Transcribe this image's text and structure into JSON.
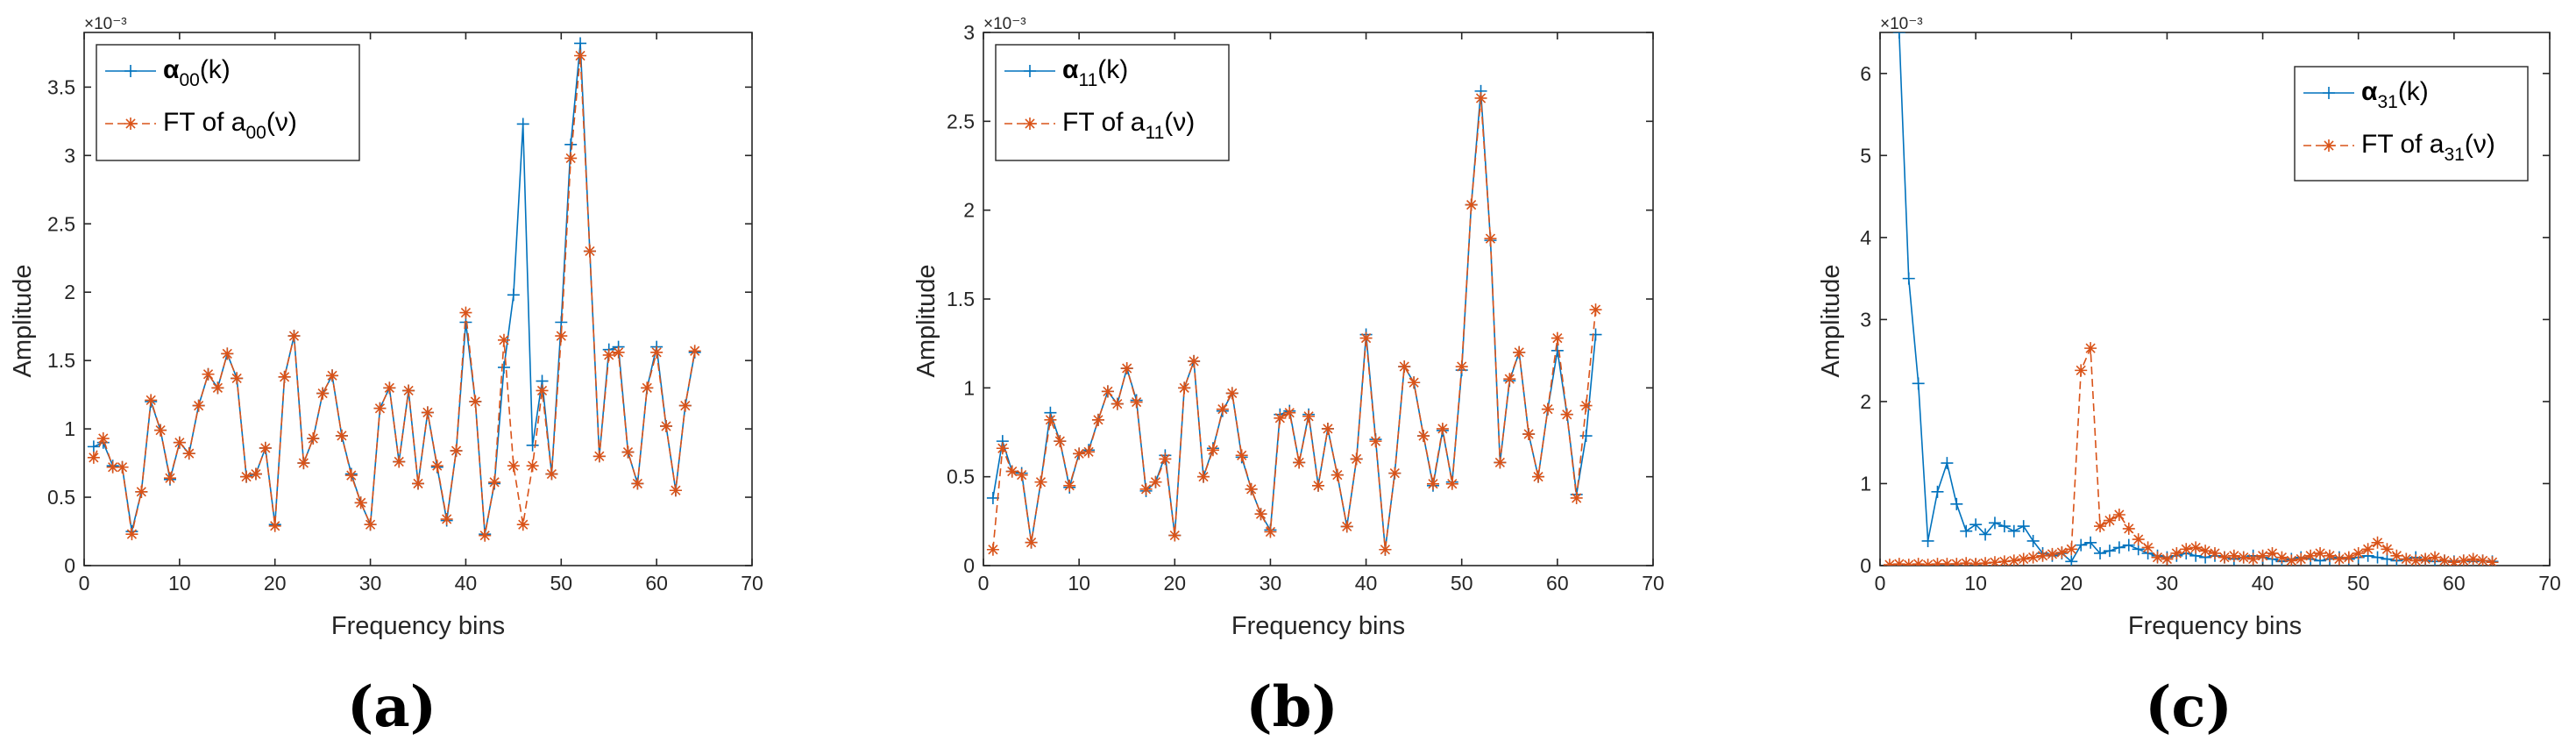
{
  "colors": {
    "blue": "#0072BD",
    "orange": "#D95319",
    "axis": "#262626"
  },
  "chart_data": [
    {
      "type": "line",
      "caption": "(a)",
      "xlabel": "Frequency bins",
      "ylabel": "Amplitude",
      "multiplier": "×10⁻³",
      "xlim": [
        0,
        70
      ],
      "ylim": [
        0,
        3.9
      ],
      "xticks": [
        0,
        10,
        20,
        30,
        40,
        50,
        60,
        70
      ],
      "xtick_labels": [
        "0",
        "10",
        "20",
        "30",
        "40",
        "50",
        "60",
        "70"
      ],
      "yticks": [
        0,
        0.5,
        1,
        1.5,
        2,
        2.5,
        3,
        3.5
      ],
      "ytick_labels": [
        "0",
        "0.5",
        "1",
        "1.5",
        "2",
        "2.5",
        "3",
        "3.5"
      ],
      "legend_position": "top-left",
      "legend_sub": "00",
      "legend": [
        {
          "name": "α00(k)",
          "prefix": "α",
          "suffix": "(k)",
          "style": "solid-plus"
        },
        {
          "name": "FT of a00(ν)",
          "prefix": "FT of a",
          "suffix": "(ν)",
          "style": "dashed-star"
        }
      ],
      "x": [
        1,
        2,
        3,
        4,
        5,
        6,
        7,
        8,
        9,
        10,
        11,
        12,
        13,
        14,
        15,
        16,
        17,
        18,
        19,
        20,
        21,
        22,
        23,
        24,
        25,
        26,
        27,
        28,
        29,
        30,
        31,
        32,
        33,
        34,
        35,
        36,
        37,
        38,
        39,
        40,
        41,
        42,
        43,
        44,
        45,
        46,
        47,
        48,
        49,
        50,
        51,
        52,
        53,
        54,
        55,
        56,
        57,
        58,
        59,
        60,
        61,
        62,
        63,
        64
      ],
      "series": [
        {
          "name": "α00(k)",
          "values": [
            0.87,
            0.9,
            0.73,
            0.72,
            0.25,
            0.54,
            1.2,
            0.99,
            0.63,
            0.9,
            0.82,
            1.17,
            1.4,
            1.3,
            1.55,
            1.37,
            0.65,
            0.67,
            0.86,
            0.3,
            1.38,
            1.68,
            0.75,
            0.93,
            1.26,
            1.39,
            0.95,
            0.67,
            0.46,
            0.3,
            1.15,
            1.3,
            0.76,
            1.28,
            0.6,
            1.12,
            0.72,
            0.33,
            0.84,
            1.78,
            1.2,
            0.23,
            0.6,
            1.45,
            1.98,
            3.23,
            0.88,
            1.35,
            0.67,
            1.78,
            3.08,
            3.82,
            2.3,
            0.8,
            1.58,
            1.6,
            0.83,
            0.6,
            1.3,
            1.6,
            1.02,
            0.55,
            1.17,
            1.56
          ]
        },
        {
          "name": "FT of a00(ν)",
          "values": [
            0.79,
            0.93,
            0.72,
            0.72,
            0.23,
            0.54,
            1.21,
            0.99,
            0.64,
            0.9,
            0.82,
            1.17,
            1.4,
            1.3,
            1.55,
            1.37,
            0.65,
            0.67,
            0.86,
            0.29,
            1.38,
            1.68,
            0.75,
            0.93,
            1.26,
            1.39,
            0.95,
            0.66,
            0.46,
            0.3,
            1.15,
            1.3,
            0.76,
            1.28,
            0.6,
            1.12,
            0.73,
            0.34,
            0.84,
            1.85,
            1.2,
            0.22,
            0.61,
            1.65,
            0.73,
            0.3,
            0.73,
            1.28,
            0.67,
            1.68,
            2.98,
            3.73,
            2.3,
            0.8,
            1.54,
            1.56,
            0.83,
            0.6,
            1.3,
            1.56,
            1.02,
            0.55,
            1.17,
            1.57
          ]
        }
      ]
    },
    {
      "type": "line",
      "caption": "(b)",
      "xlabel": "Frequency bins",
      "ylabel": "Amplitude",
      "multiplier": "×10⁻³",
      "xlim": [
        0,
        70
      ],
      "ylim": [
        0,
        3
      ],
      "xticks": [
        0,
        10,
        20,
        30,
        40,
        50,
        60,
        70
      ],
      "xtick_labels": [
        "0",
        "10",
        "20",
        "30",
        "40",
        "50",
        "60",
        "70"
      ],
      "yticks": [
        0,
        0.5,
        1,
        1.5,
        2,
        2.5,
        3
      ],
      "ytick_labels": [
        "0",
        "0.5",
        "1",
        "1.5",
        "2",
        "2.5",
        "3"
      ],
      "legend_position": "top-left",
      "legend_sub": "11",
      "legend": [
        {
          "name": "α11(k)",
          "prefix": "α",
          "suffix": "(k)",
          "style": "solid-plus"
        },
        {
          "name": "FT of a11(ν)",
          "prefix": "FT of a",
          "suffix": "(ν)",
          "style": "dashed-star"
        }
      ],
      "x": [
        1,
        2,
        3,
        4,
        5,
        6,
        7,
        8,
        9,
        10,
        11,
        12,
        13,
        14,
        15,
        16,
        17,
        18,
        19,
        20,
        21,
        22,
        23,
        24,
        25,
        26,
        27,
        28,
        29,
        30,
        31,
        32,
        33,
        34,
        35,
        36,
        37,
        38,
        39,
        40,
        41,
        42,
        43,
        44,
        45,
        46,
        47,
        48,
        49,
        50,
        51,
        52,
        53,
        54,
        55,
        56,
        57,
        58,
        59,
        60,
        61,
        62,
        63,
        64
      ],
      "series": [
        {
          "name": "α11(k)",
          "values": [
            0.38,
            0.7,
            0.53,
            0.52,
            0.13,
            0.47,
            0.86,
            0.7,
            0.44,
            0.63,
            0.65,
            0.82,
            0.98,
            0.91,
            1.11,
            0.93,
            0.42,
            0.47,
            0.62,
            0.17,
            1.0,
            1.15,
            0.5,
            0.66,
            0.87,
            0.97,
            0.61,
            0.43,
            0.29,
            0.2,
            0.85,
            0.87,
            0.58,
            0.85,
            0.45,
            0.77,
            0.51,
            0.22,
            0.6,
            1.3,
            0.71,
            0.09,
            0.52,
            1.12,
            1.03,
            0.73,
            0.45,
            0.76,
            0.47,
            1.1,
            2.03,
            2.67,
            1.83,
            0.58,
            1.04,
            1.2,
            0.74,
            0.5,
            0.88,
            1.21,
            0.85,
            0.4,
            0.73,
            1.3
          ]
        },
        {
          "name": "FT of a11(ν)",
          "values": [
            0.09,
            0.66,
            0.53,
            0.51,
            0.13,
            0.47,
            0.82,
            0.7,
            0.45,
            0.63,
            0.64,
            0.82,
            0.98,
            0.91,
            1.11,
            0.92,
            0.43,
            0.47,
            0.6,
            0.17,
            1.0,
            1.15,
            0.5,
            0.65,
            0.88,
            0.97,
            0.62,
            0.43,
            0.29,
            0.19,
            0.83,
            0.86,
            0.58,
            0.84,
            0.45,
            0.77,
            0.51,
            0.22,
            0.6,
            1.28,
            0.7,
            0.09,
            0.52,
            1.12,
            1.03,
            0.73,
            0.46,
            0.77,
            0.46,
            1.12,
            2.03,
            2.63,
            1.84,
            0.58,
            1.05,
            1.2,
            0.74,
            0.5,
            0.88,
            1.28,
            0.85,
            0.38,
            0.9,
            1.44
          ]
        }
      ]
    },
    {
      "type": "line",
      "caption": "(c)",
      "xlabel": "Frequency bins",
      "ylabel": "Amplitude",
      "multiplier": "×10⁻³",
      "xlim": [
        0,
        70
      ],
      "ylim": [
        0,
        6.5
      ],
      "xticks": [
        0,
        10,
        20,
        30,
        40,
        50,
        60,
        70
      ],
      "xtick_labels": [
        "0",
        "10",
        "20",
        "30",
        "40",
        "50",
        "60",
        "70"
      ],
      "yticks": [
        0,
        1,
        2,
        3,
        4,
        5,
        6
      ],
      "ytick_labels": [
        "0",
        "1",
        "2",
        "3",
        "4",
        "5",
        "6"
      ],
      "legend_position": "top-right",
      "legend_sub": "31",
      "legend": [
        {
          "name": "α31(k)",
          "prefix": "α",
          "suffix": "(k)",
          "style": "solid-plus"
        },
        {
          "name": "FT of a31(ν)",
          "prefix": "FT of a",
          "suffix": "(ν)",
          "style": "dashed-star"
        }
      ],
      "x": [
        1,
        2,
        3,
        4,
        5,
        6,
        7,
        8,
        9,
        10,
        11,
        12,
        13,
        14,
        15,
        16,
        17,
        18,
        19,
        20,
        21,
        22,
        23,
        24,
        25,
        26,
        27,
        28,
        29,
        30,
        31,
        32,
        33,
        34,
        35,
        36,
        37,
        38,
        39,
        40,
        41,
        42,
        43,
        44,
        45,
        46,
        47,
        48,
        49,
        50,
        51,
        52,
        53,
        54,
        55,
        56,
        57,
        58,
        59,
        60,
        61,
        62,
        63,
        64
      ],
      "series": [
        {
          "name": "α31(k)",
          "values": [
            null,
            6.5,
            3.5,
            2.22,
            0.3,
            0.9,
            1.25,
            0.75,
            0.42,
            0.5,
            0.38,
            0.52,
            0.48,
            0.42,
            0.48,
            0.3,
            0.15,
            0.12,
            0.15,
            0.05,
            0.25,
            0.28,
            0.15,
            0.18,
            0.22,
            0.25,
            0.2,
            0.15,
            0.12,
            0.1,
            0.12,
            0.15,
            0.12,
            0.1,
            0.12,
            0.1,
            0.08,
            0.1,
            0.12,
            0.1,
            0.08,
            0.05,
            0.08,
            0.1,
            0.08,
            0.06,
            0.08,
            0.1,
            0.08,
            0.1,
            0.12,
            0.1,
            0.08,
            0.06,
            0.08,
            0.1,
            0.06,
            0.05,
            0.06,
            0.05,
            0.06,
            0.05,
            0.06,
            0.05
          ]
        },
        {
          "name": "FT of a31(ν)",
          "values": [
            0.01,
            0.02,
            0.01,
            0.02,
            0.01,
            0.02,
            0.02,
            0.02,
            0.03,
            0.02,
            0.03,
            0.04,
            0.05,
            0.06,
            0.08,
            0.1,
            0.12,
            0.14,
            0.16,
            0.2,
            2.38,
            2.65,
            0.48,
            0.55,
            0.62,
            0.45,
            0.32,
            0.22,
            0.1,
            0.08,
            0.15,
            0.2,
            0.22,
            0.18,
            0.15,
            0.1,
            0.12,
            0.1,
            0.08,
            0.12,
            0.15,
            0.1,
            0.06,
            0.08,
            0.12,
            0.15,
            0.12,
            0.08,
            0.1,
            0.15,
            0.2,
            0.28,
            0.2,
            0.12,
            0.08,
            0.06,
            0.08,
            0.1,
            0.06,
            0.04,
            0.06,
            0.08,
            0.06,
            0.04
          ]
        }
      ]
    }
  ]
}
